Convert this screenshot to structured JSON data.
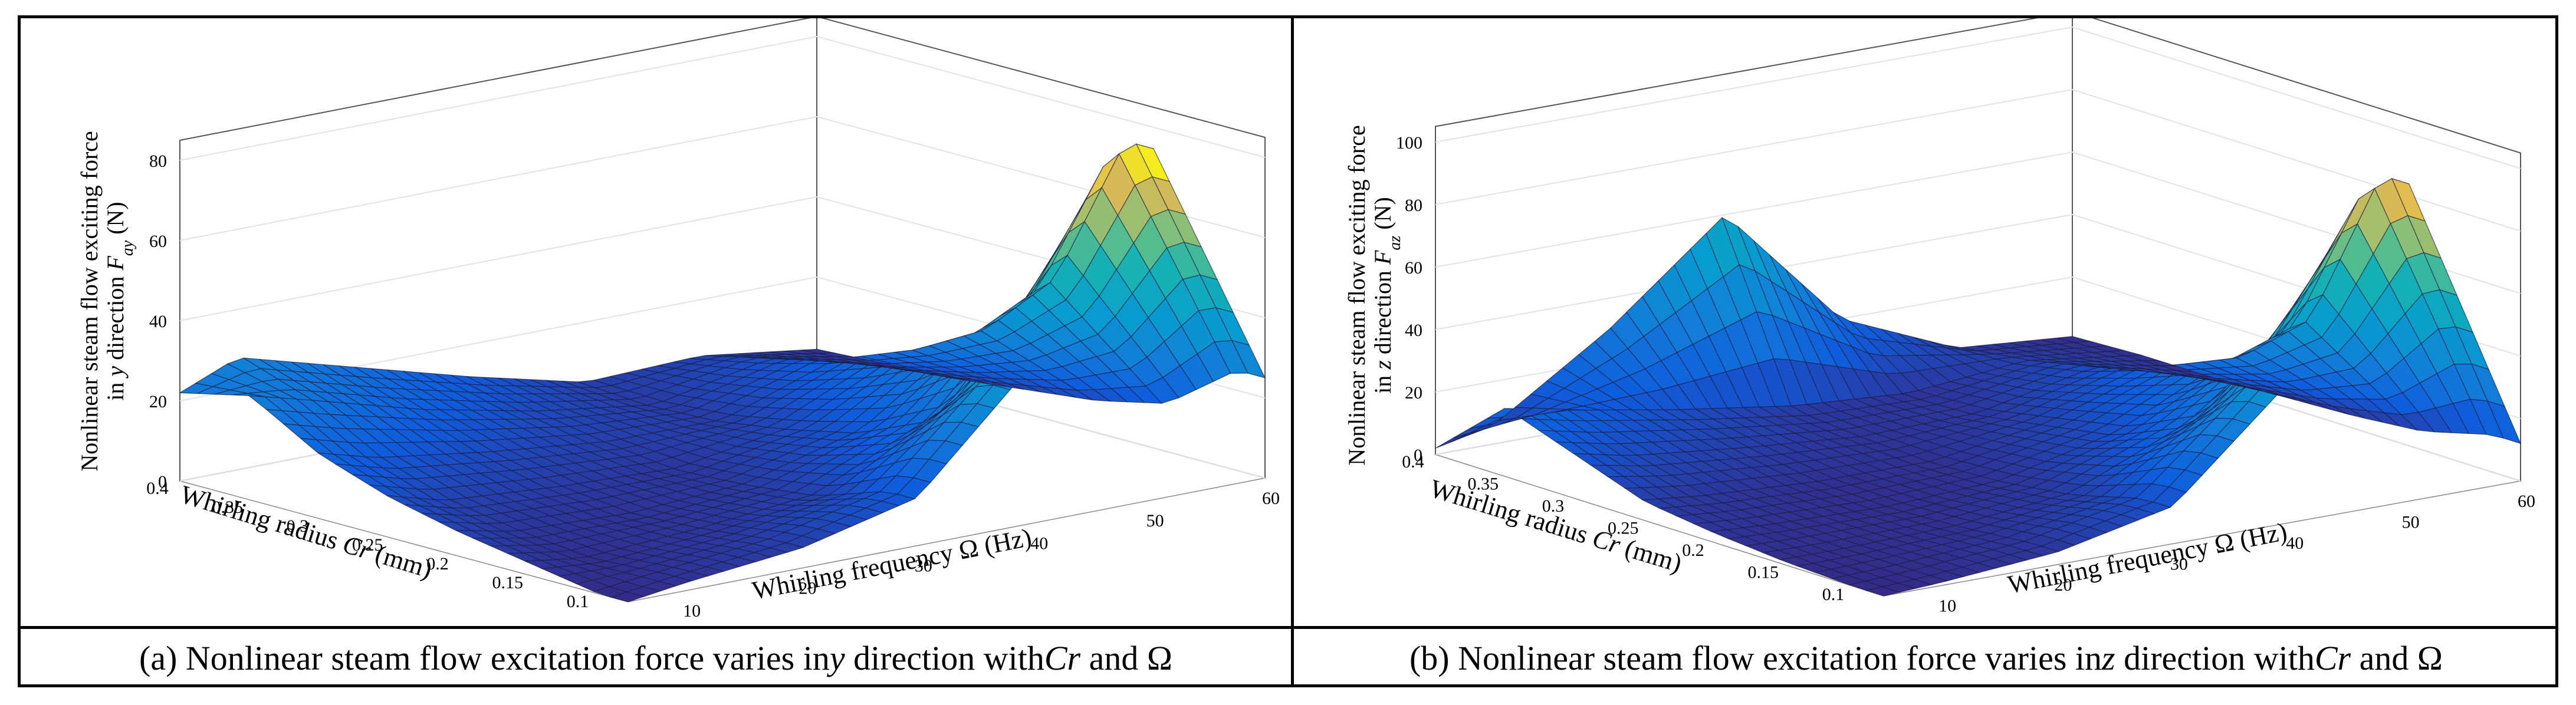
{
  "panels": [
    {
      "id": "a",
      "caption": {
        "pre": "(a) Nonlinear steam flow excitation force varies in ",
        "dir": "y",
        "mid": " direction with ",
        "cr": "Cr",
        "and": " and Ω"
      },
      "zlabel_line1": "Nonlinear steam flow exciting force",
      "zlabel_line2_pre": "in ",
      "zlabel_line2_dir": "y",
      "zlabel_line2_mid": " direction ",
      "zlabel_line2_F": "F",
      "zlabel_line2_sub": "ay",
      "zlabel_line2_unit": " (N)",
      "xlabel_pre": "Whirling radius ",
      "xlabel_var": "Cr",
      "xlabel_unit": " (mm)",
      "ylabel": "Whirling frequency Ω (Hz)",
      "z_ticks": [
        "0",
        "20",
        "40",
        "60",
        "80"
      ],
      "cr_ticks": [
        "0.4",
        "0.35",
        "0.3",
        "0.25",
        "0.2",
        "0.15",
        "0.1"
      ],
      "freq_ticks": [
        "10",
        "20",
        "30",
        "40",
        "50",
        "60"
      ]
    },
    {
      "id": "b",
      "caption": {
        "pre": "(b) Nonlinear steam flow excitation force varies in ",
        "dir": "z",
        "mid": " direction with ",
        "cr": "Cr",
        "and": " and Ω"
      },
      "zlabel_line1": "Nonlinear steam flow exciting force",
      "zlabel_line2_pre": "in ",
      "zlabel_line2_dir": "z",
      "zlabel_line2_mid": " direction ",
      "zlabel_line2_F": "F",
      "zlabel_line2_sub": "az",
      "zlabel_line2_unit": " (N)",
      "xlabel_pre": "Whirling radius ",
      "xlabel_var": "Cr",
      "xlabel_unit": " (mm)",
      "ylabel": "Whirling frequency Ω (Hz)",
      "z_ticks": [
        "0",
        "20",
        "40",
        "60",
        "80",
        "100"
      ],
      "cr_ticks": [
        "0.4",
        "0.35",
        "0.3",
        "0.25",
        "0.2",
        "0.15",
        "0.1"
      ],
      "freq_ticks": [
        "10",
        "20",
        "30",
        "40",
        "50",
        "60"
      ]
    }
  ],
  "chart_data": [
    {
      "type": "surface",
      "title": "Nonlinear steam flow excitation force varies in y direction with Cr and Ω",
      "xlabel": "Whirling radius Cr (mm)",
      "ylabel": "Whirling frequency Ω (Hz)",
      "zlabel": "Nonlinear steam flow exciting force in y direction Fay (N)",
      "x": [
        0.1,
        0.15,
        0.2,
        0.25,
        0.3,
        0.35,
        0.4
      ],
      "y": [
        5,
        10,
        20,
        30,
        40,
        50,
        60
      ],
      "z": [
        [
          0,
          2,
          5,
          12,
          40,
          90,
          25
        ],
        [
          3,
          1,
          3,
          6,
          20,
          50,
          12
        ],
        [
          6,
          3,
          2,
          4,
          12,
          32,
          8
        ],
        [
          10,
          6,
          4,
          3,
          8,
          22,
          6
        ],
        [
          16,
          12,
          8,
          5,
          5,
          15,
          4
        ],
        [
          26,
          22,
          14,
          8,
          4,
          10,
          3
        ],
        [
          22,
          28,
          20,
          12,
          5,
          6,
          2
        ]
      ],
      "xlim": [
        0.08,
        0.4
      ],
      "ylim": [
        5,
        60
      ],
      "zlim": [
        0,
        85
      ],
      "colormap": "parula"
    },
    {
      "type": "surface",
      "title": "Nonlinear steam flow excitation force varies in z direction with Cr and Ω",
      "xlabel": "Whirling radius Cr (mm)",
      "ylabel": "Whirling frequency Ω (Hz)",
      "zlabel": "Nonlinear steam flow exciting force in z direction Faz (N)",
      "x": [
        0.1,
        0.15,
        0.2,
        0.25,
        0.3,
        0.35,
        0.4
      ],
      "y": [
        5,
        10,
        20,
        30,
        40,
        50,
        60
      ],
      "z": [
        [
          0,
          1,
          4,
          12,
          45,
          105,
          12
        ],
        [
          1,
          1,
          2,
          6,
          22,
          50,
          6
        ],
        [
          3,
          2,
          1,
          3,
          12,
          30,
          4
        ],
        [
          6,
          4,
          2,
          2,
          8,
          20,
          3
        ],
        [
          14,
          10,
          6,
          3,
          4,
          12,
          2
        ],
        [
          22,
          18,
          11,
          5,
          3,
          7,
          2
        ],
        [
          2,
          6,
          30,
          60,
          20,
          4,
          1
        ]
      ],
      "xlim": [
        0.08,
        0.4
      ],
      "ylim": [
        5,
        60
      ],
      "zlim": [
        0,
        105
      ],
      "colormap": "parula"
    }
  ]
}
